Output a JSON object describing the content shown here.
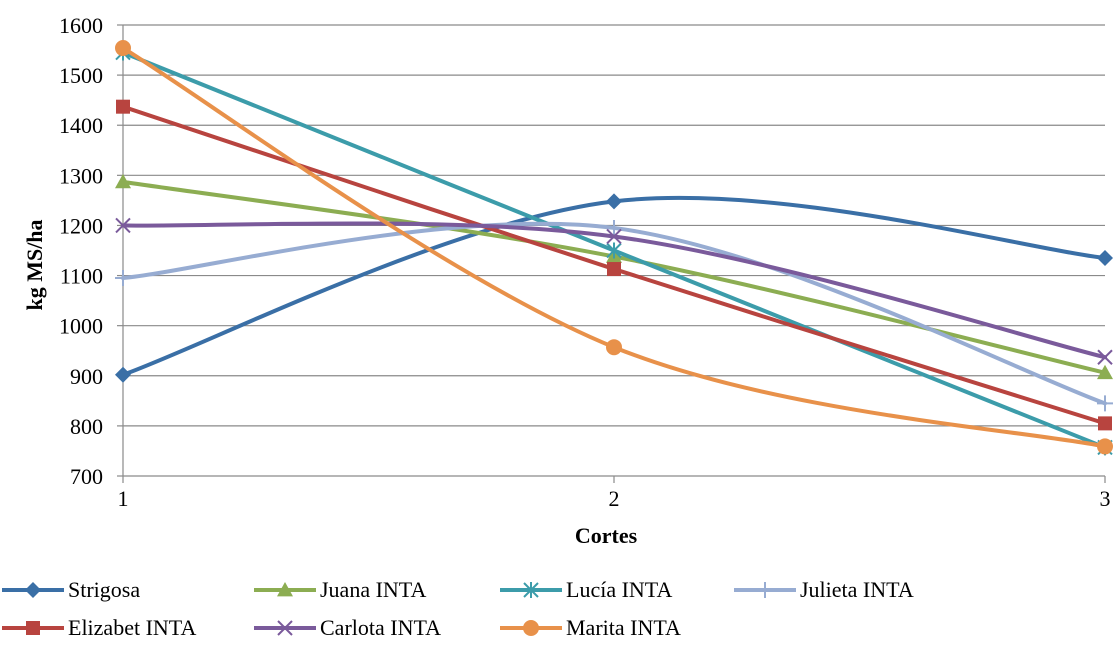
{
  "chart_data": {
    "type": "line",
    "title": "",
    "xlabel": "Cortes",
    "ylabel": "kg MS/ha",
    "x": [
      1,
      2,
      3
    ],
    "x_tick_labels": [
      "1",
      "2",
      "3"
    ],
    "ylim": [
      700,
      1600
    ],
    "y_ticks": [
      700,
      800,
      900,
      1000,
      1100,
      1200,
      1300,
      1400,
      1500,
      1600
    ],
    "grid": true,
    "smooth": true,
    "legend_position": "bottom",
    "series": [
      {
        "name": "Strigosa",
        "values": [
          902,
          1248,
          1135
        ],
        "color": "#3a6fa6",
        "marker": "diamond"
      },
      {
        "name": "Juana INTA",
        "values": [
          1287,
          1138,
          906
        ],
        "color": "#8cad52",
        "marker": "triangle"
      },
      {
        "name": "Lucía INTA",
        "values": [
          1545,
          1150,
          757
        ],
        "color": "#3c9caa",
        "marker": "star"
      },
      {
        "name": "Julieta INTA",
        "values": [
          1095,
          1195,
          845
        ],
        "color": "#97acd2",
        "marker": "plus"
      },
      {
        "name": "Elizabet INTA",
        "values": [
          1437,
          1113,
          805
        ],
        "color": "#b8443f",
        "marker": "square"
      },
      {
        "name": "Carlota INTA",
        "values": [
          1200,
          1178,
          937
        ],
        "color": "#7a5a9b",
        "marker": "x"
      },
      {
        "name": "Marita INTA",
        "values": [
          1554,
          957,
          759
        ],
        "color": "#e8914a",
        "marker": "circle"
      }
    ]
  }
}
